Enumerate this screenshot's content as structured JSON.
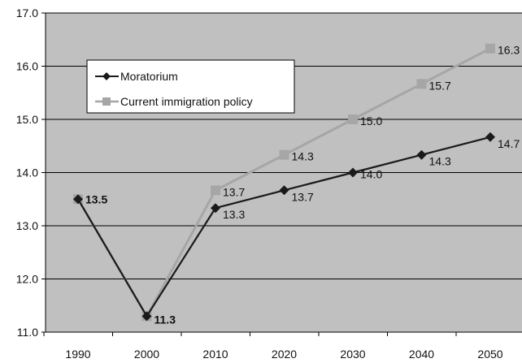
{
  "chart_data": {
    "type": "line",
    "title": "",
    "xlabel": "",
    "ylabel": "",
    "categories": [
      "1990",
      "2000",
      "2010",
      "2020",
      "2030",
      "2040",
      "2050"
    ],
    "ylim": [
      11.0,
      17.0
    ],
    "yticks": [
      "11.0",
      "12.0",
      "13.0",
      "14.0",
      "15.0",
      "16.0",
      "17.0"
    ],
    "grid": true,
    "plot_background": "#c0c0c0",
    "legend_position": "upper-left inside plot",
    "series": [
      {
        "name": "Moratorium",
        "color": "#1a1a1a",
        "marker": "diamond",
        "values": [
          13.5,
          11.3,
          13.333,
          13.667,
          14.0,
          14.333,
          14.667
        ],
        "labels": [
          "13.5",
          "11.3",
          "13.3",
          "13.7",
          "14.0",
          "14.3",
          "14.7"
        ]
      },
      {
        "name": "Current immigration policy",
        "color": "#a6a6a6",
        "marker": "square",
        "values": [
          13.5,
          11.3,
          13.667,
          14.333,
          15.0,
          15.667,
          16.333
        ],
        "labels": [
          "13.5",
          "11.3",
          "13.7",
          "14.3",
          "15.0",
          "15.7",
          "16.3"
        ]
      }
    ]
  }
}
